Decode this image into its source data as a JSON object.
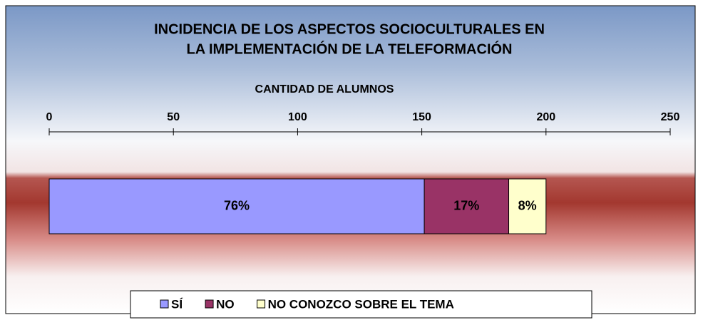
{
  "chart_data": {
    "type": "bar",
    "orientation": "horizontal",
    "stacked": true,
    "title": [
      "INCIDENCIA DE LOS ASPECTOS SOCIOCULTURALES  EN",
      "LA IMPLEMENTACIÓN  DE LA TELEFORMACIÓN"
    ],
    "x_label": "CANTIDAD DE ALUMNOS",
    "categories": [
      null
    ],
    "series": [
      {
        "name": "SÍ",
        "color": "#9999ff",
        "values": [
          151
        ],
        "value_labels": [
          "76%"
        ]
      },
      {
        "name": "NO",
        "color": "#993366",
        "values": [
          34
        ],
        "value_labels": [
          "17%"
        ]
      },
      {
        "name": "NO CONOZCO SOBRE EL TEMA",
        "color": "#ffffcc",
        "values": [
          15
        ],
        "value_labels": [
          "8%"
        ]
      }
    ],
    "xlim": [
      0,
      250
    ],
    "xticks": [
      0,
      50,
      100,
      150,
      200,
      250
    ],
    "legend": "bottom"
  }
}
